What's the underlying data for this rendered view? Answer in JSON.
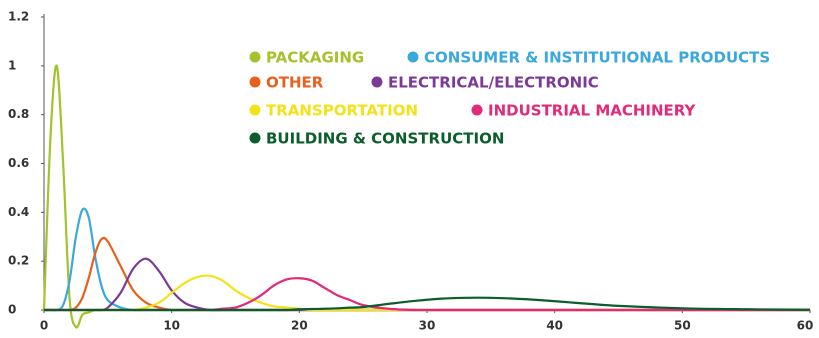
{
  "chart_data": {
    "type": "line",
    "x": [
      0,
      0.5,
      1,
      1.5,
      2,
      2.5,
      3,
      3.5,
      4,
      4.5,
      5,
      6,
      7,
      8,
      9,
      10,
      11,
      12,
      13,
      14,
      15,
      16,
      17,
      18,
      19,
      20,
      21,
      22,
      23,
      24,
      25,
      27,
      29,
      31,
      33,
      35,
      37,
      39,
      41,
      43,
      45,
      50,
      55,
      60
    ],
    "xlim": [
      0,
      60
    ],
    "ylim": [
      0,
      1.2
    ],
    "xticks": [
      0,
      10,
      20,
      30,
      40,
      50,
      60
    ],
    "yticks": [
      0,
      0.2,
      0.4,
      0.6,
      0.8,
      1,
      1.2
    ],
    "grid": false,
    "series": [
      {
        "name": "PACKAGING",
        "color": "#a3c22b",
        "values": [
          0,
          0.7,
          1.0,
          0.6,
          0.05,
          -0.07,
          -0.02,
          -0.01,
          0,
          0,
          0,
          0,
          0,
          0,
          0,
          0,
          0,
          0,
          0,
          0,
          0,
          0,
          0,
          0,
          0,
          0,
          0,
          0,
          0,
          0,
          0,
          0,
          0,
          0,
          0,
          0,
          0,
          0,
          0,
          0,
          0,
          0,
          0,
          0
        ]
      },
      {
        "name": "CONSUMER & INSTITUTIONAL PRODUCTS",
        "color": "#3aa8dc",
        "values": [
          0,
          0,
          0,
          0.02,
          0.12,
          0.3,
          0.41,
          0.38,
          0.22,
          0.1,
          0.04,
          0.01,
          0,
          0,
          0,
          0,
          0,
          0,
          0,
          0,
          0,
          0,
          0,
          0,
          0,
          0,
          0,
          0,
          0,
          0,
          0,
          0,
          0,
          0,
          0,
          0,
          0,
          0,
          0,
          0,
          0,
          0,
          0,
          0
        ]
      },
      {
        "name": "OTHER",
        "color": "#e8601c",
        "values": [
          0,
          0,
          0,
          0,
          0,
          0.01,
          0.05,
          0.13,
          0.23,
          0.29,
          0.28,
          0.18,
          0.08,
          0.03,
          0.01,
          0,
          0,
          0,
          0,
          0,
          0,
          0,
          0,
          0,
          0,
          0,
          0,
          0,
          0,
          0,
          0,
          0,
          0,
          0,
          0,
          0,
          0,
          0,
          0,
          0,
          0,
          0,
          0,
          0
        ]
      },
      {
        "name": "ELECTRICAL/ELECTRONIC",
        "color": "#7b3a96",
        "values": [
          0,
          0,
          0,
          0,
          0,
          0,
          0,
          0,
          0,
          0,
          0.01,
          0.07,
          0.17,
          0.21,
          0.16,
          0.08,
          0.03,
          0.01,
          0,
          0,
          0,
          0,
          0,
          0,
          0,
          0,
          0,
          0,
          0,
          0,
          0,
          0,
          0,
          0,
          0,
          0,
          0,
          0,
          0,
          0,
          0,
          0,
          0,
          0
        ]
      },
      {
        "name": "TRANSPORTATION",
        "color": "#f5e11a",
        "values": [
          0,
          0,
          0,
          0,
          0,
          0,
          0,
          0,
          0,
          0,
          0,
          0,
          0,
          0.01,
          0.03,
          0.07,
          0.11,
          0.135,
          0.14,
          0.12,
          0.08,
          0.05,
          0.03,
          0.015,
          0.01,
          0.005,
          0,
          0,
          0,
          0,
          0,
          0,
          0,
          0,
          0,
          0,
          0,
          0,
          0,
          0,
          0,
          0,
          0,
          0
        ]
      },
      {
        "name": "INDUSTRIAL MACHINERY",
        "color": "#e2297a",
        "values": [
          0,
          0,
          0,
          0,
          0,
          0,
          0,
          0,
          0,
          0,
          0,
          0,
          0,
          0,
          0,
          0,
          0,
          0,
          0,
          0.005,
          0.01,
          0.03,
          0.06,
          0.1,
          0.125,
          0.13,
          0.12,
          0.09,
          0.06,
          0.04,
          0.02,
          0.005,
          0,
          0,
          0,
          0,
          0,
          0,
          0,
          0,
          0,
          0,
          0,
          0
        ]
      },
      {
        "name": "BUILDING & CONSTRUCTION",
        "color": "#0b5e2b",
        "values": [
          0,
          0,
          0,
          0,
          0,
          0,
          0,
          0,
          0,
          0,
          0,
          0,
          0,
          0,
          0,
          0,
          0,
          0,
          0,
          0,
          0,
          0,
          0,
          0,
          0,
          0.003,
          0.004,
          0.005,
          0.007,
          0.01,
          0.012,
          0.025,
          0.037,
          0.046,
          0.05,
          0.05,
          0.046,
          0.04,
          0.032,
          0.024,
          0.017,
          0.007,
          0.003,
          0.001
        ]
      }
    ]
  }
}
